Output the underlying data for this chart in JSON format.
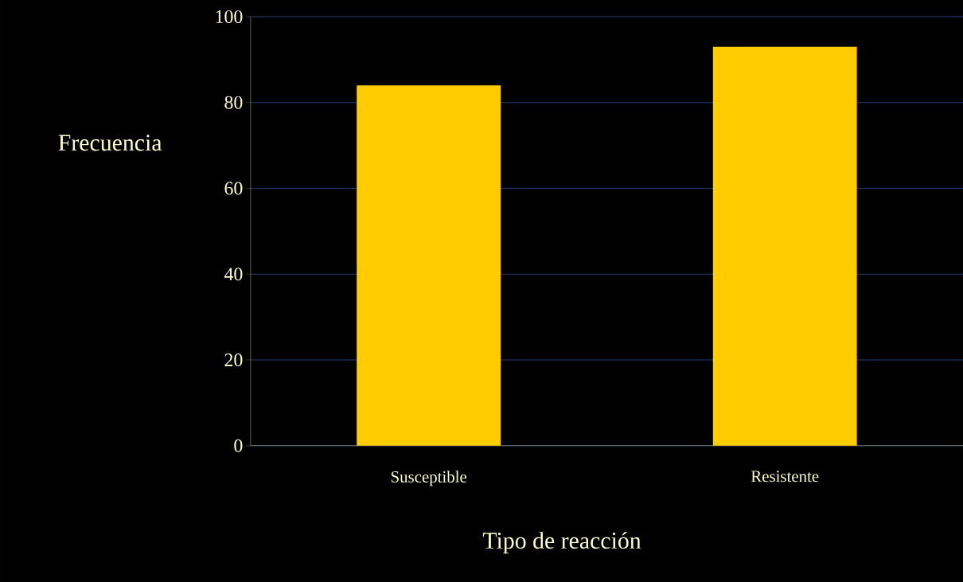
{
  "chart_data": {
    "type": "bar",
    "xlabel": "Tipo de reacción",
    "ylabel": "Frecuencia",
    "categories": [
      "Susceptible",
      "Resistente"
    ],
    "values": [
      84,
      93
    ],
    "color": "#ffcc00",
    "ylim": [
      0,
      100
    ],
    "yticks": [
      0,
      20,
      40,
      60,
      80,
      100
    ],
    "grid": "y"
  }
}
